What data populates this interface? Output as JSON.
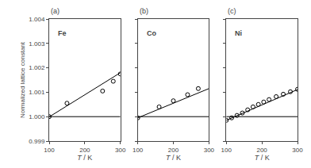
{
  "chart_data": [
    {
      "type": "scatter",
      "title": "(a)",
      "annotations": [
        "Fe"
      ],
      "xlabel": "T / K",
      "ylabel": "Normalized lattice constant",
      "xlim": [
        100,
        300
      ],
      "xticks": [
        100,
        200,
        300
      ],
      "ylim": [
        0.999,
        1.004
      ],
      "yticks": [
        0.999,
        {
          "value": 1.0,
          "label": "1.000"
        },
        1.001,
        1.002,
        1.003,
        1.004
      ],
      "grid": false,
      "series": [
        {
          "type": "line",
          "color": "black",
          "x": [
            100,
            300
          ],
          "values": [
            1.0,
            1.0
          ]
        },
        {
          "type": "line",
          "color": "black",
          "x": [
            100,
            300
          ],
          "values": [
            0.99999,
            1.0018
          ]
        },
        {
          "type": "scatter",
          "marker": "circle-open",
          "color": "black",
          "x": [
            100,
            150,
            250,
            280,
            300
          ],
          "values": [
            1.0,
            1.00055,
            1.00105,
            1.00145,
            1.00175
          ]
        }
      ]
    },
    {
      "type": "scatter",
      "title": "(b)",
      "annotations": [
        "Co"
      ],
      "xlabel": "T / K",
      "xlim": [
        100,
        300
      ],
      "xticks": [
        100,
        200,
        300
      ],
      "ylim": [
        0.999,
        1.004
      ],
      "yticks": [
        0.999,
        1.0,
        1.001,
        1.002,
        1.003,
        1.004
      ],
      "grid": false,
      "tick_labels": "x",
      "series": [
        {
          "type": "line",
          "color": "black",
          "x": [
            100,
            300
          ],
          "values": [
            1.0,
            1.0
          ]
        },
        {
          "type": "line",
          "color": "black",
          "x": [
            100,
            300
          ],
          "values": [
            0.99995,
            1.00115
          ]
        },
        {
          "type": "scatter",
          "marker": "circle-open",
          "color": "black",
          "x": [
            100,
            160,
            200,
            240,
            270
          ],
          "values": [
            0.99995,
            1.0004,
            1.00065,
            1.0009,
            1.00115
          ]
        }
      ]
    },
    {
      "type": "scatter",
      "title": "(c)",
      "annotations": [
        "Ni"
      ],
      "xlabel": "T / K",
      "xlim": [
        100,
        300
      ],
      "xticks": [
        100,
        200,
        300
      ],
      "ylim": [
        0.999,
        1.004
      ],
      "yticks": [
        0.999,
        1.0,
        1.001,
        1.002,
        1.003,
        1.004
      ],
      "grid": false,
      "tick_labels": "x",
      "series": [
        {
          "type": "line",
          "color": "black",
          "x": [
            100,
            300
          ],
          "values": [
            1.0,
            1.0
          ]
        },
        {
          "type": "line",
          "color": "black",
          "x": [
            100,
            300
          ],
          "values": [
            0.99985,
            1.00111
          ]
        },
        {
          "type": "scatter",
          "marker": "circle-open",
          "color": "black",
          "x": [
            100,
            115,
            130,
            145,
            160,
            175,
            190,
            205,
            220,
            240,
            260,
            280,
            300
          ],
          "values": [
            0.99985,
            0.99995,
            1.00005,
            1.00015,
            1.00028,
            1.0004,
            1.0005,
            1.0006,
            1.0007,
            1.00082,
            1.00092,
            1.00102,
            1.00112
          ]
        }
      ]
    }
  ]
}
